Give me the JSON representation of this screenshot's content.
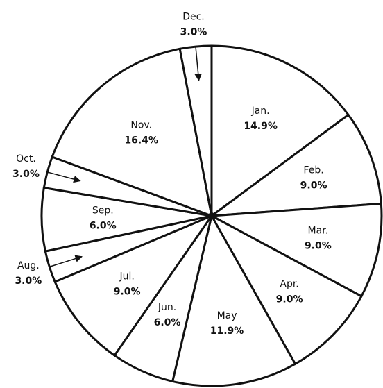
{
  "chart_data": {
    "type": "pie",
    "categories": [
      "Jan.",
      "Feb.",
      "Mar.",
      "Apr.",
      "May",
      "Jun.",
      "Jul.",
      "Aug.",
      "Sep.",
      "Oct.",
      "Nov.",
      "Dec."
    ],
    "values": [
      14.9,
      9.0,
      9.0,
      9.0,
      11.9,
      6.0,
      9.0,
      3.0,
      6.0,
      3.0,
      16.4,
      3.0
    ],
    "value_labels": [
      "14.9%",
      "9.0%",
      "9.0%",
      "9.0%",
      "11.9%",
      "6.0%",
      "9.0%",
      "3.0%",
      "6.0%",
      "3.0%",
      "16.4%",
      "3.0%"
    ],
    "color": "#ffffff",
    "edge_color": "#111111"
  }
}
